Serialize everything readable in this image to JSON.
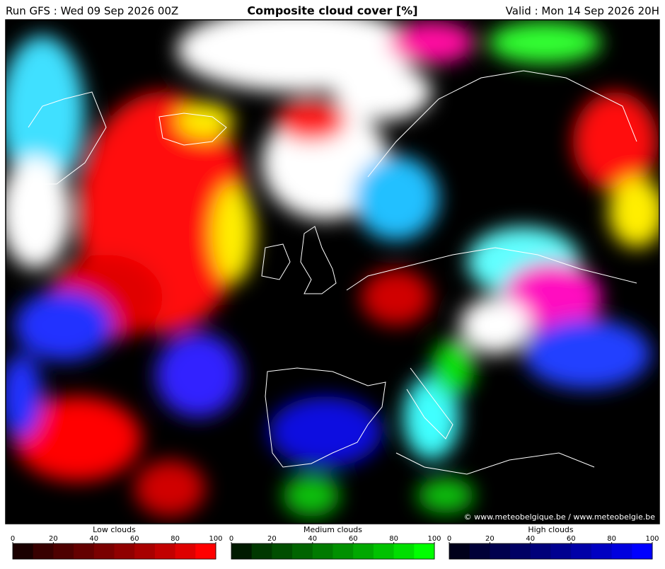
{
  "header": {
    "run": "Run GFS : Wed 09 Sep 2026 00Z",
    "title": "Composite cloud cover [%]",
    "valid": "Valid : Mon 14 Sep 2026 20H"
  },
  "copyright": "© www.meteobelgique.be / www.meteobelgie.be",
  "legends": [
    {
      "title": "Low clouds",
      "ticks": [
        0,
        20,
        40,
        60,
        80,
        100
      ],
      "colors": [
        "#1a0000",
        "#380000",
        "#4e0000",
        "#640000",
        "#7a0000",
        "#900000",
        "#a80000",
        "#c20000",
        "#de0000",
        "#ff0000"
      ]
    },
    {
      "title": "Medium clouds",
      "ticks": [
        0,
        20,
        40,
        60,
        80,
        100
      ],
      "colors": [
        "#001a00",
        "#003800",
        "#004e00",
        "#006400",
        "#007a00",
        "#009000",
        "#00a800",
        "#00c200",
        "#00de00",
        "#00ff00"
      ]
    },
    {
      "title": "High clouds",
      "ticks": [
        0,
        20,
        40,
        60,
        80,
        100
      ],
      "colors": [
        "#00001a",
        "#000038",
        "#00004e",
        "#000064",
        "#00007a",
        "#000090",
        "#0000a8",
        "#0000c2",
        "#0000de",
        "#0000ff"
      ]
    }
  ]
}
